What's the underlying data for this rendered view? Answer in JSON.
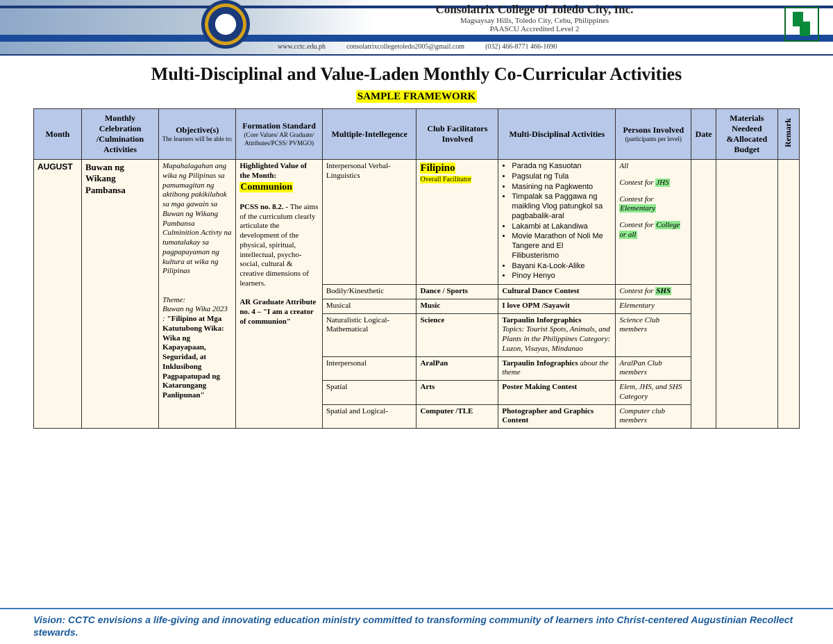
{
  "banner": {
    "name": "Consolatrix College of Toledo City, Inc.",
    "address": "Magsaysay Hills, Toledo City, Cebu, Philippines",
    "accred": "PAASCU Accredited Level 2",
    "web": "www.cctc.edu.ph",
    "email": "consolatrixcollegetoledo2005@gmail.com",
    "phone": "(032) 466-8771  466-1690"
  },
  "title": "Multi-Disciplinal and Value-Laden Monthly Co-Curricular Activities",
  "sample": "SAMPLE FRAMEWORK",
  "headers": {
    "month": "Month",
    "celeb": "Monthly Celebration /Culmination Activities",
    "obj": "Objective(s)",
    "obj_sub": "The learners will be able to:",
    "std": "Formation Standard",
    "std_sub": "(Core Values/ AR Graduate/ Attributes/PCSS/ PVMGO)",
    "mi": "Multiple-Intellegence",
    "club": "Club Facilitators Involved",
    "act": "Multi-Disciplinal Activities",
    "pers": "Persons Involved",
    "pers_sub": "(participants per level)",
    "date": "Date",
    "mat": "Materials Needeed &Allocated Budget",
    "remark": "Remark"
  },
  "row": {
    "month": "AUGUST",
    "celeb": "Buwan ng Wikang Pambansa",
    "obj1": "Mapahalagahan ang wika ng Pilipinas sa pamamagitan ng aktibong pakikilahok sa mga gawain sa Buwan ng Wikang Pambansa Culminition Activty na tumatalakay sa pagpapayaman ng kultura at wika ng Pilipinas",
    "theme_label": "Theme:",
    "theme_pre": "Buwan ng Wika 2023 : ",
    "theme": "\"Filipino at Mga Katutubong Wika: Wika ng Kapayapaan, Seguridad, at Inklusibong Pagpapatupad ng Katarungang Panlipunan\"",
    "std_top": "Highlighted Value of the Month:",
    "std_hl": "Communion",
    "pcss_label": "PCSS no. 8.2. - ",
    "pcss": "The aims of the curriculum clearly articulate the development of the physical, spiritual, intellectual, psycho-social, cultural & creative dimensions of learners.",
    "ar_label": "AR Graduate Attribute no. 4 – ",
    "ar": "\"I am a creator of communion\"",
    "club_main": "Filipino",
    "club_sub": "Overall Facilitator"
  },
  "subrows": [
    {
      "mi": "Interpersonal Verbal-Linguistics",
      "activities_list": [
        "Parada ng Kasuotan",
        "Pagsulat ng Tula",
        "Masining na Pagkwento",
        "Timpalak sa Paggawa ng maikling Vlog patungkol sa pagbabalik-aral",
        "Lakambi at Lakandiwa",
        "Movie Marathon of Noli Me Tangere and El Filibusterismo",
        "Bayani Ka-Look-Alike",
        "Pinoy Henyo"
      ],
      "pers_lines": [
        {
          "pre": "All",
          "hl": "",
          "cls": ""
        },
        {
          "pre": "Contest for ",
          "hl": "JHS",
          "cls": "hl-g"
        },
        {
          "pre": "Contest for ",
          "hl": "Elementary",
          "cls": "hl-g"
        },
        {
          "pre": "Contest for ",
          "hl": "College or all",
          "cls": "hl-g"
        }
      ]
    },
    {
      "mi": "Bodily/Kinesthetic",
      "club": "Dance / Sports",
      "act": "Cultural Dance Contest",
      "pers_pre": "Contest for ",
      "pers_hl": "SHS",
      "pers_cls": "hl-g"
    },
    {
      "mi": "Musical",
      "club": "Music",
      "act": "I love OPM /Sayawit",
      "pers": "Elementary"
    },
    {
      "mi": "Naturalistic Logical-Mathematical",
      "club": "Science",
      "act_main": "Tarpaulin Inforgraphics",
      "act_sub": "Topics: Tourist Spots, Animals, and Plants in the Philippines Category: Luzon, Visayas, Mindanao",
      "pers": "Science Club members"
    },
    {
      "mi": "Interpersonal",
      "club": "AralPan",
      "act_main": "Tarpaulin Infographics ",
      "act_sub": "about the theme",
      "pers": "AralPan Club members"
    },
    {
      "mi": "Spatial",
      "club": "Arts",
      "act": "Poster Making Contest",
      "pers": "Elem, JHS, and SHS Category"
    },
    {
      "mi": "Spatial and Logical-",
      "club": "Computer /TLE",
      "act": "Photographer and Graphics Content",
      "pers": "Computer club members"
    }
  ],
  "footer": "Vision: CCTC envisions a life-giving and innovating education ministry committed to transforming community of learners into Christ-centered Augustinian Recollect stewards."
}
